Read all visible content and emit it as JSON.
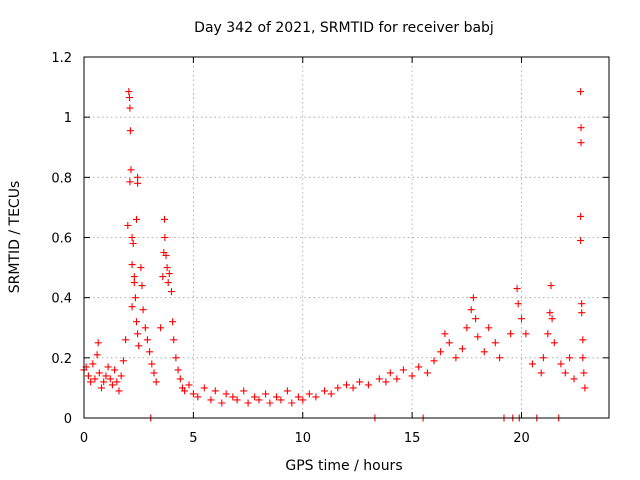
{
  "chart_data": {
    "type": "scatter",
    "title": "Day 342 of 2021, SRMTID for receiver babj",
    "xlabel": "GPS time / hours",
    "ylabel": "SRMTID / TECUs",
    "xlim": [
      0,
      24
    ],
    "ylim": [
      0,
      1.2
    ],
    "xticks": [
      0,
      5,
      10,
      15,
      20
    ],
    "xtick_labels": [
      "0",
      "5",
      "10",
      "15",
      "20"
    ],
    "yticks": [
      0,
      0.2,
      0.4,
      0.6,
      0.8,
      1.0,
      1.2
    ],
    "ytick_labels": [
      "0",
      "0.2",
      "0.4",
      "0.6",
      "0.8",
      "1",
      "1.2"
    ],
    "grid": true,
    "marker": "+",
    "color": "#ff0000",
    "series": [
      {
        "name": "SRMTID",
        "points": [
          [
            0.0,
            0.16
          ],
          [
            0.1,
            0.17
          ],
          [
            0.2,
            0.14
          ],
          [
            0.3,
            0.12
          ],
          [
            0.4,
            0.18
          ],
          [
            0.5,
            0.13
          ],
          [
            0.6,
            0.21
          ],
          [
            0.65,
            0.25
          ],
          [
            0.7,
            0.15
          ],
          [
            0.8,
            0.1
          ],
          [
            0.9,
            0.12
          ],
          [
            1.0,
            0.14
          ],
          [
            1.1,
            0.17
          ],
          [
            1.2,
            0.13
          ],
          [
            1.3,
            0.11
          ],
          [
            1.4,
            0.16
          ],
          [
            1.5,
            0.12
          ],
          [
            1.6,
            0.09
          ],
          [
            1.7,
            0.14
          ],
          [
            1.8,
            0.19
          ],
          [
            1.9,
            0.26
          ],
          [
            2.0,
            0.64
          ],
          [
            2.05,
            1.085
          ],
          [
            2.08,
            1.065
          ],
          [
            2.1,
            1.03
          ],
          [
            2.12,
            0.955
          ],
          [
            2.15,
            0.825
          ],
          [
            2.1,
            0.785
          ],
          [
            2.2,
            0.6
          ],
          [
            2.25,
            0.58
          ],
          [
            2.2,
            0.51
          ],
          [
            2.3,
            0.47
          ],
          [
            2.3,
            0.45
          ],
          [
            2.35,
            0.4
          ],
          [
            2.2,
            0.37
          ],
          [
            2.4,
            0.32
          ],
          [
            2.45,
            0.28
          ],
          [
            2.4,
            0.66
          ],
          [
            2.45,
            0.8
          ],
          [
            2.45,
            0.78
          ],
          [
            2.5,
            0.24
          ],
          [
            2.6,
            0.5
          ],
          [
            2.65,
            0.44
          ],
          [
            2.7,
            0.36
          ],
          [
            2.8,
            0.3
          ],
          [
            2.9,
            0.26
          ],
          [
            3.0,
            0.22
          ],
          [
            3.05,
            0.0
          ],
          [
            3.1,
            0.18
          ],
          [
            3.2,
            0.15
          ],
          [
            3.3,
            0.12
          ],
          [
            3.5,
            0.3
          ],
          [
            3.6,
            0.47
          ],
          [
            3.65,
            0.55
          ],
          [
            3.68,
            0.66
          ],
          [
            3.7,
            0.6
          ],
          [
            3.75,
            0.54
          ],
          [
            3.8,
            0.5
          ],
          [
            3.85,
            0.45
          ],
          [
            3.9,
            0.48
          ],
          [
            4.0,
            0.42
          ],
          [
            4.05,
            0.32
          ],
          [
            4.1,
            0.26
          ],
          [
            4.2,
            0.2
          ],
          [
            4.3,
            0.16
          ],
          [
            4.4,
            0.13
          ],
          [
            4.5,
            0.1
          ],
          [
            4.6,
            0.09
          ],
          [
            4.8,
            0.11
          ],
          [
            5.0,
            0.08
          ],
          [
            5.2,
            0.07
          ],
          [
            5.5,
            0.1
          ],
          [
            5.8,
            0.06
          ],
          [
            6.0,
            0.09
          ],
          [
            6.3,
            0.05
          ],
          [
            6.5,
            0.08
          ],
          [
            6.8,
            0.07
          ],
          [
            7.0,
            0.06
          ],
          [
            7.3,
            0.09
          ],
          [
            7.5,
            0.05
          ],
          [
            7.8,
            0.07
          ],
          [
            8.0,
            0.06
          ],
          [
            8.3,
            0.08
          ],
          [
            8.5,
            0.05
          ],
          [
            8.8,
            0.07
          ],
          [
            9.0,
            0.06
          ],
          [
            9.3,
            0.09
          ],
          [
            9.5,
            0.05
          ],
          [
            9.8,
            0.07
          ],
          [
            10.0,
            0.06
          ],
          [
            10.3,
            0.08
          ],
          [
            10.6,
            0.07
          ],
          [
            11.0,
            0.09
          ],
          [
            11.3,
            0.08
          ],
          [
            11.6,
            0.1
          ],
          [
            12.0,
            0.11
          ],
          [
            12.3,
            0.1
          ],
          [
            12.6,
            0.12
          ],
          [
            13.0,
            0.11
          ],
          [
            13.3,
            0.0
          ],
          [
            13.5,
            0.13
          ],
          [
            13.8,
            0.12
          ],
          [
            14.0,
            0.15
          ],
          [
            14.3,
            0.13
          ],
          [
            14.6,
            0.16
          ],
          [
            15.0,
            0.14
          ],
          [
            15.3,
            0.17
          ],
          [
            15.5,
            0.0
          ],
          [
            15.7,
            0.15
          ],
          [
            16.0,
            0.19
          ],
          [
            16.3,
            0.22
          ],
          [
            16.5,
            0.28
          ],
          [
            16.7,
            0.25
          ],
          [
            17.0,
            0.2
          ],
          [
            17.3,
            0.23
          ],
          [
            17.5,
            0.3
          ],
          [
            17.7,
            0.36
          ],
          [
            17.8,
            0.4
          ],
          [
            17.9,
            0.33
          ],
          [
            18.0,
            0.27
          ],
          [
            18.3,
            0.22
          ],
          [
            18.5,
            0.3
          ],
          [
            18.8,
            0.25
          ],
          [
            19.0,
            0.2
          ],
          [
            19.2,
            0.0
          ],
          [
            19.5,
            0.28
          ],
          [
            19.6,
            0.0
          ],
          [
            19.8,
            0.43
          ],
          [
            19.85,
            0.38
          ],
          [
            19.9,
            0.0
          ],
          [
            20.0,
            0.33
          ],
          [
            20.2,
            0.28
          ],
          [
            20.5,
            0.18
          ],
          [
            20.7,
            0.0
          ],
          [
            20.9,
            0.15
          ],
          [
            21.0,
            0.2
          ],
          [
            21.2,
            0.28
          ],
          [
            21.3,
            0.35
          ],
          [
            21.35,
            0.44
          ],
          [
            21.4,
            0.33
          ],
          [
            21.5,
            0.25
          ],
          [
            21.7,
            0.0
          ],
          [
            21.8,
            0.18
          ],
          [
            22.0,
            0.15
          ],
          [
            22.2,
            0.2
          ],
          [
            22.4,
            0.13
          ],
          [
            22.7,
            1.085
          ],
          [
            22.72,
            0.965
          ],
          [
            22.72,
            0.915
          ],
          [
            22.7,
            0.67
          ],
          [
            22.7,
            0.59
          ],
          [
            22.75,
            0.38
          ],
          [
            22.75,
            0.35
          ],
          [
            22.8,
            0.26
          ],
          [
            22.8,
            0.2
          ],
          [
            22.85,
            0.15
          ],
          [
            22.9,
            0.1
          ]
        ]
      }
    ]
  }
}
